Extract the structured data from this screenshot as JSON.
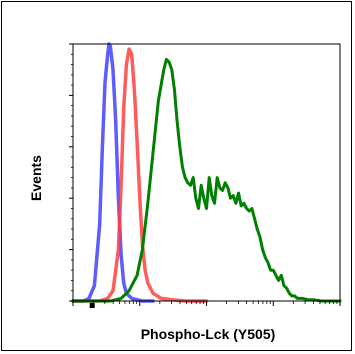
{
  "chart_data": {
    "type": "line",
    "title": "",
    "xlabel": "Phospho-Lck (Y505)",
    "ylabel": "Events",
    "xscale": "log",
    "x_tick_labels": [],
    "y_tick_labels": [],
    "grid": false,
    "legend": "none",
    "xlim": [
      0,
      100
    ],
    "ylim": [
      0,
      100
    ],
    "series": [
      {
        "color": "#4040ff",
        "x": [
          0,
          4,
          6,
          8,
          10,
          11,
          12,
          13,
          13.5,
          14,
          15,
          16,
          17,
          18,
          19,
          20,
          22,
          26,
          30
        ],
        "y": [
          0,
          0,
          1,
          6,
          30,
          60,
          85,
          96,
          100,
          99,
          90,
          70,
          40,
          18,
          7,
          3,
          1,
          0,
          0
        ]
      },
      {
        "color": "#ff4040",
        "x": [
          0,
          10,
          13,
          15,
          17,
          18,
          19,
          20,
          21,
          22,
          23,
          24,
          25,
          26,
          27,
          28,
          30,
          33,
          37,
          42,
          50
        ],
        "y": [
          0,
          0,
          1,
          4,
          20,
          45,
          75,
          92,
          98,
          96,
          82,
          62,
          40,
          22,
          12,
          7,
          3,
          1,
          0.5,
          0,
          0
        ]
      },
      {
        "color": "#008000",
        "x": [
          0,
          14,
          18,
          21,
          24,
          26,
          28,
          30,
          32,
          34,
          35,
          36,
          37,
          38,
          39,
          40,
          41,
          42,
          43,
          44,
          45,
          46,
          47,
          48,
          49,
          50,
          51,
          52,
          53,
          54,
          55,
          56,
          57,
          58,
          59,
          60,
          61,
          62,
          63,
          64,
          65,
          66,
          67,
          68,
          69,
          70,
          71,
          72,
          73,
          74,
          75,
          76,
          77,
          78,
          79,
          80,
          81,
          82,
          83,
          84,
          85,
          86,
          88,
          90,
          93,
          97,
          100
        ],
        "y": [
          0,
          0,
          1,
          4,
          10,
          20,
          38,
          58,
          78,
          90,
          94,
          93,
          90,
          82,
          70,
          60,
          52,
          48,
          46,
          45,
          48,
          40,
          36,
          45,
          40,
          36,
          48,
          41,
          38,
          48,
          44,
          43,
          46,
          44,
          40,
          41,
          38,
          42,
          37,
          38,
          36,
          35,
          36,
          32,
          28,
          25,
          20,
          17,
          15,
          12,
          12,
          10,
          8,
          10,
          6,
          5,
          3,
          2,
          2,
          1,
          1,
          1,
          0.5,
          0.5,
          0,
          0,
          0
        ]
      }
    ]
  }
}
